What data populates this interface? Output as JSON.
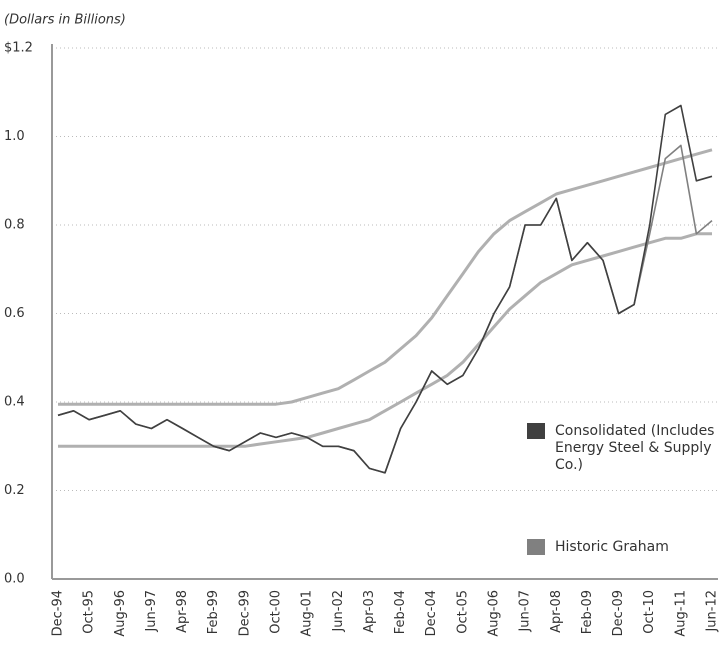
{
  "chart_data": {
    "type": "line",
    "subtitle": "(Dollars in Billions)",
    "categories": [
      "Dec-94",
      null,
      "Oct-95",
      null,
      "Aug-96",
      null,
      "Jun-97",
      null,
      "Apr-98",
      null,
      "Feb-99",
      null,
      "Dec-99",
      null,
      "Oct-00",
      null,
      "Aug-01",
      null,
      "Jun-02",
      null,
      "Apr-03",
      null,
      "Feb-04",
      null,
      "Dec-04",
      null,
      "Oct-05",
      null,
      "Aug-06",
      null,
      "Jun-07",
      null,
      "Apr-08",
      null,
      "Feb-09",
      null,
      "Dec-09",
      null,
      "Oct-10",
      null,
      "Aug-11",
      null,
      "Jun-12"
    ],
    "series": [
      {
        "color": "#b0b0b0",
        "values": [
          0.395,
          0.395,
          0.395,
          0.395,
          0.395,
          0.395,
          0.395,
          0.395,
          0.395,
          0.395,
          0.395,
          0.395,
          0.395,
          0.395,
          0.395,
          0.4,
          0.41,
          0.42,
          0.43,
          0.45,
          0.47,
          0.49,
          0.52,
          0.55,
          0.59,
          0.64,
          0.69,
          0.74,
          0.78,
          0.81,
          0.83,
          0.85,
          0.87,
          0.88,
          0.89,
          0.9,
          0.91,
          0.92,
          0.93,
          0.94,
          0.95,
          0.96,
          0.97
        ]
      },
      {
        "color": "#b0b0b0",
        "values": [
          0.3,
          0.3,
          0.3,
          0.3,
          0.3,
          0.3,
          0.3,
          0.3,
          0.3,
          0.3,
          0.3,
          0.3,
          0.3,
          0.305,
          0.31,
          0.315,
          0.32,
          0.33,
          0.34,
          0.35,
          0.36,
          0.38,
          0.4,
          0.42,
          0.44,
          0.46,
          0.49,
          0.53,
          0.57,
          0.61,
          0.64,
          0.67,
          0.69,
          0.71,
          0.72,
          0.73,
          0.74,
          0.75,
          0.76,
          0.77,
          0.77,
          0.78,
          0.78
        ]
      },
      {
        "name": "Historic Graham",
        "color": "#808080",
        "values": [
          0.37,
          0.38,
          0.36,
          0.37,
          0.38,
          0.35,
          0.34,
          0.36,
          0.34,
          0.32,
          0.3,
          0.29,
          0.31,
          0.33,
          0.32,
          0.33,
          0.32,
          0.3,
          0.3,
          0.29,
          0.25,
          0.24,
          0.34,
          0.4,
          0.47,
          0.44,
          0.46,
          0.52,
          0.6,
          0.66,
          0.8,
          0.8,
          0.86,
          0.72,
          0.76,
          0.72,
          0.6,
          0.62,
          0.78,
          0.95,
          0.98,
          0.78,
          0.81
        ]
      },
      {
        "name": "Consolidated (Includes Energy Steel & Supply Co.)",
        "color": "#404040",
        "values": [
          0.37,
          0.38,
          0.36,
          0.37,
          0.38,
          0.35,
          0.34,
          0.36,
          0.34,
          0.32,
          0.3,
          0.29,
          0.31,
          0.33,
          0.32,
          0.33,
          0.32,
          0.3,
          0.3,
          0.29,
          0.25,
          0.24,
          0.34,
          0.4,
          0.47,
          0.44,
          0.46,
          0.52,
          0.6,
          0.66,
          0.8,
          0.8,
          0.86,
          0.72,
          0.76,
          0.72,
          0.6,
          0.62,
          0.8,
          1.05,
          1.07,
          0.9,
          0.91
        ]
      }
    ],
    "ylim": [
      0,
      1.2
    ],
    "yticks": [
      {
        "value": 0,
        "label": "0.0"
      },
      {
        "value": 0.2,
        "label": "0.2"
      },
      {
        "value": 0.4,
        "label": "0.4"
      },
      {
        "value": 0.6,
        "label": "0.6"
      },
      {
        "value": 0.8,
        "label": "0.8"
      },
      {
        "value": 1.0,
        "label": "1.0"
      },
      {
        "value": 1.2,
        "label": "$1.2"
      }
    ],
    "grid": true
  }
}
